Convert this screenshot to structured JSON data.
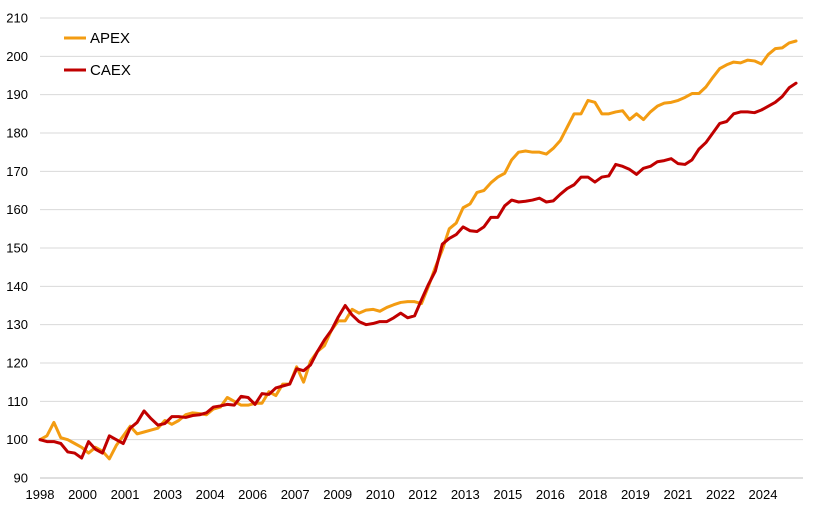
{
  "chart_data": {
    "type": "line",
    "title": "",
    "xlabel": "",
    "ylabel": "",
    "xlim": [
      1998,
      2025
    ],
    "ylim": [
      90,
      210
    ],
    "yticks": [
      90,
      100,
      110,
      120,
      130,
      140,
      150,
      160,
      170,
      180,
      190,
      200,
      210
    ],
    "xticks": [
      "1998",
      "2000",
      "2001",
      "2003",
      "2004",
      "2006",
      "2007",
      "2009",
      "2010",
      "2012",
      "2013",
      "2015",
      "2016",
      "2018",
      "2019",
      "2021",
      "2022",
      "2024"
    ],
    "grid": "horizontal",
    "legend": "top-left",
    "series": [
      {
        "name": "APEX",
        "color": "#F39C12",
        "points": [
          [
            1998.0,
            100
          ],
          [
            1998.25,
            101
          ],
          [
            1998.5,
            104.5
          ],
          [
            1998.75,
            100.5
          ],
          [
            1999.0,
            100
          ],
          [
            1999.25,
            99
          ],
          [
            1999.5,
            98
          ],
          [
            1999.75,
            96.5
          ],
          [
            2000.0,
            98
          ],
          [
            2000.25,
            97
          ],
          [
            2000.5,
            95
          ],
          [
            2000.75,
            98.5
          ],
          [
            2001.0,
            101
          ],
          [
            2001.25,
            103.5
          ],
          [
            2001.5,
            101.5
          ],
          [
            2001.75,
            102
          ],
          [
            2002.0,
            102.5
          ],
          [
            2002.25,
            103
          ],
          [
            2002.5,
            105
          ],
          [
            2002.75,
            104
          ],
          [
            2003.0,
            105
          ],
          [
            2003.25,
            106.5
          ],
          [
            2003.5,
            107
          ],
          [
            2003.75,
            106.8
          ],
          [
            2004.0,
            106.5
          ],
          [
            2004.25,
            108
          ],
          [
            2004.5,
            108.5
          ],
          [
            2004.75,
            111
          ],
          [
            2005.0,
            110
          ],
          [
            2005.25,
            109
          ],
          [
            2005.5,
            109
          ],
          [
            2005.75,
            109.5
          ],
          [
            2006.0,
            109.5
          ],
          [
            2006.25,
            112.5
          ],
          [
            2006.5,
            111.5
          ],
          [
            2006.75,
            114.5
          ],
          [
            2007.0,
            114.5
          ],
          [
            2007.25,
            119
          ],
          [
            2007.5,
            115
          ],
          [
            2007.75,
            120.5
          ],
          [
            2008.0,
            123
          ],
          [
            2008.25,
            124.5
          ],
          [
            2008.5,
            128.5
          ],
          [
            2008.75,
            131
          ],
          [
            2009.0,
            131
          ],
          [
            2009.25,
            134
          ],
          [
            2009.5,
            133
          ],
          [
            2009.75,
            133.8
          ],
          [
            2010.0,
            134
          ],
          [
            2010.25,
            133.5
          ],
          [
            2010.5,
            134.5
          ],
          [
            2010.75,
            135.2
          ],
          [
            2011.0,
            135.8
          ],
          [
            2011.25,
            136
          ],
          [
            2011.5,
            136
          ],
          [
            2011.75,
            135.5
          ],
          [
            2012.0,
            140
          ],
          [
            2012.25,
            145
          ],
          [
            2012.5,
            149.5
          ],
          [
            2012.75,
            155
          ],
          [
            2013.0,
            156.5
          ],
          [
            2013.25,
            160.5
          ],
          [
            2013.5,
            161.5
          ],
          [
            2013.75,
            164.5
          ],
          [
            2014.0,
            165
          ],
          [
            2014.25,
            167
          ],
          [
            2014.5,
            168.5
          ],
          [
            2014.75,
            169.5
          ],
          [
            2015.0,
            173
          ],
          [
            2015.25,
            175
          ],
          [
            2015.5,
            175.3
          ],
          [
            2015.75,
            175
          ],
          [
            2016.0,
            175
          ],
          [
            2016.25,
            174.5
          ],
          [
            2016.5,
            176
          ],
          [
            2016.75,
            178
          ],
          [
            2017.0,
            181.5
          ],
          [
            2017.25,
            185
          ],
          [
            2017.5,
            185
          ],
          [
            2017.75,
            188.5
          ],
          [
            2018.0,
            188
          ],
          [
            2018.25,
            185
          ],
          [
            2018.5,
            185
          ],
          [
            2018.75,
            185.5
          ],
          [
            2019.0,
            185.8
          ],
          [
            2019.25,
            183.5
          ],
          [
            2019.5,
            185
          ],
          [
            2019.75,
            183.5
          ],
          [
            2020.0,
            185.5
          ],
          [
            2020.25,
            187
          ],
          [
            2020.5,
            187.8
          ],
          [
            2020.75,
            188
          ],
          [
            2021.0,
            188.5
          ],
          [
            2021.25,
            189.3
          ],
          [
            2021.5,
            190.3
          ],
          [
            2021.75,
            190.3
          ],
          [
            2022.0,
            192
          ],
          [
            2022.25,
            194.5
          ],
          [
            2022.5,
            196.8
          ],
          [
            2022.75,
            197.8
          ],
          [
            2023.0,
            198.5
          ],
          [
            2023.25,
            198.3
          ],
          [
            2023.5,
            199
          ],
          [
            2023.75,
            198.8
          ],
          [
            2024.0,
            198
          ],
          [
            2024.25,
            200.5
          ],
          [
            2024.5,
            202
          ],
          [
            2024.75,
            202.2
          ],
          [
            2025.0,
            203.5
          ],
          [
            2025.25,
            204
          ]
        ]
      },
      {
        "name": "CAEX",
        "color": "#C00000",
        "points": [
          [
            1998.0,
            100
          ],
          [
            1998.25,
            99.5
          ],
          [
            1998.5,
            99.5
          ],
          [
            1998.75,
            99
          ],
          [
            1999.0,
            96.8
          ],
          [
            1999.25,
            96.5
          ],
          [
            1999.5,
            95.2
          ],
          [
            1999.75,
            99.5
          ],
          [
            2000.0,
            97.5
          ],
          [
            2000.25,
            96.5
          ],
          [
            2000.5,
            101
          ],
          [
            2000.75,
            100
          ],
          [
            2001.0,
            99
          ],
          [
            2001.25,
            103
          ],
          [
            2001.5,
            104.5
          ],
          [
            2001.75,
            107.5
          ],
          [
            2002.0,
            105.5
          ],
          [
            2002.25,
            103.8
          ],
          [
            2002.5,
            104.2
          ],
          [
            2002.75,
            106
          ],
          [
            2003.0,
            106
          ],
          [
            2003.25,
            105.8
          ],
          [
            2003.5,
            106.3
          ],
          [
            2003.75,
            106.5
          ],
          [
            2004.0,
            107
          ],
          [
            2004.25,
            108.5
          ],
          [
            2004.5,
            108.8
          ],
          [
            2004.75,
            109.2
          ],
          [
            2005.0,
            109
          ],
          [
            2005.25,
            111.3
          ],
          [
            2005.5,
            111
          ],
          [
            2005.75,
            109.2
          ],
          [
            2006.0,
            112
          ],
          [
            2006.25,
            111.8
          ],
          [
            2006.5,
            113.5
          ],
          [
            2006.75,
            114
          ],
          [
            2007.0,
            114.5
          ],
          [
            2007.25,
            118.5
          ],
          [
            2007.5,
            118
          ],
          [
            2007.75,
            119.5
          ],
          [
            2008.0,
            123
          ],
          [
            2008.25,
            126
          ],
          [
            2008.5,
            128.5
          ],
          [
            2008.75,
            132
          ],
          [
            2009.0,
            135
          ],
          [
            2009.25,
            132.5
          ],
          [
            2009.5,
            130.8
          ],
          [
            2009.75,
            130
          ],
          [
            2010.0,
            130.3
          ],
          [
            2010.25,
            130.8
          ],
          [
            2010.5,
            130.8
          ],
          [
            2010.75,
            131.8
          ],
          [
            2011.0,
            133
          ],
          [
            2011.25,
            131.8
          ],
          [
            2011.5,
            132.3
          ],
          [
            2011.75,
            136.5
          ],
          [
            2012.0,
            140.5
          ],
          [
            2012.25,
            144
          ],
          [
            2012.5,
            151
          ],
          [
            2012.75,
            152.5
          ],
          [
            2013.0,
            153.5
          ],
          [
            2013.25,
            155.5
          ],
          [
            2013.5,
            154.5
          ],
          [
            2013.75,
            154.3
          ],
          [
            2014.0,
            155.5
          ],
          [
            2014.25,
            158
          ],
          [
            2014.5,
            158
          ],
          [
            2014.75,
            161
          ],
          [
            2015.0,
            162.5
          ],
          [
            2015.25,
            162
          ],
          [
            2015.5,
            162.2
          ],
          [
            2015.75,
            162.5
          ],
          [
            2016.0,
            163
          ],
          [
            2016.25,
            162
          ],
          [
            2016.5,
            162.3
          ],
          [
            2016.75,
            164
          ],
          [
            2017.0,
            165.5
          ],
          [
            2017.25,
            166.5
          ],
          [
            2017.5,
            168.5
          ],
          [
            2017.75,
            168.5
          ],
          [
            2018.0,
            167.2
          ],
          [
            2018.25,
            168.5
          ],
          [
            2018.5,
            168.8
          ],
          [
            2018.75,
            171.8
          ],
          [
            2019.0,
            171.3
          ],
          [
            2019.25,
            170.5
          ],
          [
            2019.5,
            169.2
          ],
          [
            2019.75,
            170.8
          ],
          [
            2020.0,
            171.3
          ],
          [
            2020.25,
            172.5
          ],
          [
            2020.5,
            172.8
          ],
          [
            2020.75,
            173.3
          ],
          [
            2021.0,
            172
          ],
          [
            2021.25,
            171.8
          ],
          [
            2021.5,
            173
          ],
          [
            2021.75,
            175.8
          ],
          [
            2022.0,
            177.5
          ],
          [
            2022.25,
            180
          ],
          [
            2022.5,
            182.5
          ],
          [
            2022.75,
            183
          ],
          [
            2023.0,
            185
          ],
          [
            2023.25,
            185.5
          ],
          [
            2023.5,
            185.5
          ],
          [
            2023.75,
            185.3
          ],
          [
            2024.0,
            186
          ],
          [
            2024.25,
            187
          ],
          [
            2024.5,
            188
          ],
          [
            2024.75,
            189.5
          ],
          [
            2025.0,
            191.8
          ],
          [
            2025.25,
            193
          ]
        ]
      }
    ]
  }
}
